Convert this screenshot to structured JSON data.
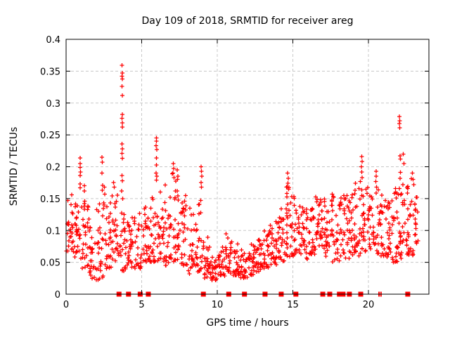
{
  "chart_data": {
    "type": "scatter",
    "title": "Day 109 of 2018, SRMTID for receiver areg",
    "xlabel": "GPS time / hours",
    "ylabel": "SRMTID / TECUs",
    "xlim": [
      0,
      24
    ],
    "ylim": [
      0,
      0.4
    ],
    "xticks": [
      0,
      5,
      10,
      15,
      20
    ],
    "xtick_labels": [
      "0",
      "5",
      "10",
      "15",
      "20"
    ],
    "yticks": [
      0,
      0.05,
      0.1,
      0.15,
      0.2,
      0.25,
      0.3,
      0.35,
      0.4
    ],
    "ytick_labels": [
      "0",
      "0.05",
      "0.1",
      "0.15",
      "0.2",
      "0.25",
      "0.3",
      "0.35",
      "0.4"
    ],
    "grid": true,
    "legend": "none",
    "marker": "plus",
    "colors": {
      "marker": "#ff0000",
      "grid": "#c8c8c8",
      "axis": "#000000",
      "background": "#ffffff",
      "text": "#000000"
    },
    "band_bins": [
      [
        0.0,
        0.5,
        0.065,
        0.16,
        26
      ],
      [
        0.5,
        1.0,
        0.055,
        0.15,
        26
      ],
      [
        1.0,
        1.5,
        0.04,
        0.155,
        28
      ],
      [
        1.5,
        2.0,
        0.02,
        0.125,
        26
      ],
      [
        2.0,
        2.5,
        0.02,
        0.145,
        28
      ],
      [
        2.5,
        3.0,
        0.04,
        0.15,
        26
      ],
      [
        3.0,
        3.5,
        0.05,
        0.16,
        26
      ],
      [
        3.5,
        4.0,
        0.035,
        0.13,
        24
      ],
      [
        4.0,
        4.5,
        0.035,
        0.125,
        26
      ],
      [
        4.5,
        5.0,
        0.04,
        0.13,
        24
      ],
      [
        5.0,
        5.5,
        0.05,
        0.145,
        26
      ],
      [
        5.5,
        6.0,
        0.05,
        0.165,
        26
      ],
      [
        6.0,
        6.5,
        0.05,
        0.165,
        28
      ],
      [
        6.5,
        7.0,
        0.045,
        0.175,
        28
      ],
      [
        7.0,
        7.5,
        0.05,
        0.19,
        30
      ],
      [
        7.5,
        8.0,
        0.045,
        0.155,
        26
      ],
      [
        8.0,
        8.5,
        0.03,
        0.14,
        24
      ],
      [
        8.5,
        9.0,
        0.035,
        0.155,
        26
      ],
      [
        9.0,
        9.5,
        0.025,
        0.09,
        24
      ],
      [
        9.5,
        10.0,
        0.022,
        0.065,
        26
      ],
      [
        10.0,
        10.5,
        0.028,
        0.075,
        24
      ],
      [
        10.5,
        11.0,
        0.03,
        0.095,
        24
      ],
      [
        11.0,
        11.5,
        0.028,
        0.08,
        24
      ],
      [
        11.5,
        12.0,
        0.025,
        0.07,
        24
      ],
      [
        12.0,
        12.5,
        0.03,
        0.08,
        26
      ],
      [
        12.5,
        13.0,
        0.035,
        0.09,
        26
      ],
      [
        13.0,
        13.5,
        0.04,
        0.1,
        26
      ],
      [
        13.5,
        14.0,
        0.045,
        0.115,
        28
      ],
      [
        14.0,
        14.5,
        0.05,
        0.135,
        28
      ],
      [
        14.5,
        15.0,
        0.055,
        0.175,
        30
      ],
      [
        15.0,
        15.5,
        0.06,
        0.155,
        28
      ],
      [
        15.5,
        16.0,
        0.055,
        0.14,
        26
      ],
      [
        16.0,
        16.5,
        0.06,
        0.15,
        28
      ],
      [
        16.5,
        17.0,
        0.065,
        0.165,
        30
      ],
      [
        17.0,
        17.5,
        0.055,
        0.15,
        28
      ],
      [
        17.5,
        18.0,
        0.05,
        0.16,
        28
      ],
      [
        18.0,
        18.5,
        0.05,
        0.155,
        26
      ],
      [
        18.5,
        19.0,
        0.055,
        0.165,
        28
      ],
      [
        19.0,
        19.5,
        0.06,
        0.185,
        28
      ],
      [
        19.5,
        20.0,
        0.065,
        0.175,
        28
      ],
      [
        20.0,
        20.5,
        0.07,
        0.16,
        26
      ],
      [
        20.5,
        21.0,
        0.06,
        0.165,
        28
      ],
      [
        21.0,
        21.5,
        0.055,
        0.15,
        26
      ],
      [
        21.5,
        22.0,
        0.05,
        0.17,
        28
      ],
      [
        22.0,
        22.5,
        0.055,
        0.195,
        30
      ],
      [
        22.5,
        23.0,
        0.06,
        0.185,
        30
      ],
      [
        23.0,
        23.3,
        0.08,
        0.16,
        16
      ]
    ],
    "peak_points": [
      [
        0.93,
        0.214
      ],
      [
        0.94,
        0.205
      ],
      [
        0.93,
        0.199
      ],
      [
        0.95,
        0.192
      ],
      [
        0.93,
        0.186
      ],
      [
        0.94,
        0.173
      ],
      [
        0.92,
        0.167
      ],
      [
        1.22,
        0.17
      ],
      [
        1.21,
        0.162
      ],
      [
        2.38,
        0.215
      ],
      [
        2.4,
        0.207
      ],
      [
        2.37,
        0.19
      ],
      [
        2.42,
        0.171
      ],
      [
        2.39,
        0.163
      ],
      [
        2.53,
        0.168
      ],
      [
        2.55,
        0.157
      ],
      [
        2.52,
        0.14
      ],
      [
        3.15,
        0.175
      ],
      [
        3.18,
        0.168
      ],
      [
        3.7,
        0.359
      ],
      [
        3.71,
        0.347
      ],
      [
        3.69,
        0.342
      ],
      [
        3.72,
        0.338
      ],
      [
        3.7,
        0.326
      ],
      [
        3.71,
        0.312
      ],
      [
        3.73,
        0.282
      ],
      [
        3.7,
        0.276
      ],
      [
        3.72,
        0.269
      ],
      [
        3.71,
        0.262
      ],
      [
        3.7,
        0.236
      ],
      [
        3.72,
        0.228
      ],
      [
        3.69,
        0.221
      ],
      [
        3.71,
        0.213
      ],
      [
        3.7,
        0.186
      ],
      [
        3.72,
        0.178
      ],
      [
        3.68,
        0.162
      ],
      [
        3.74,
        0.15
      ],
      [
        5.97,
        0.245
      ],
      [
        5.98,
        0.24
      ],
      [
        5.96,
        0.233
      ],
      [
        5.99,
        0.227
      ],
      [
        5.97,
        0.214
      ],
      [
        5.98,
        0.203
      ],
      [
        5.96,
        0.19
      ],
      [
        6.0,
        0.185
      ],
      [
        5.98,
        0.179
      ],
      [
        7.1,
        0.205
      ],
      [
        7.12,
        0.197
      ],
      [
        7.08,
        0.19
      ],
      [
        7.14,
        0.183
      ],
      [
        7.35,
        0.195
      ],
      [
        7.4,
        0.185
      ],
      [
        8.93,
        0.2
      ],
      [
        8.95,
        0.193
      ],
      [
        8.97,
        0.185
      ],
      [
        8.94,
        0.175
      ],
      [
        8.96,
        0.168
      ],
      [
        14.65,
        0.19
      ],
      [
        14.7,
        0.182
      ],
      [
        14.68,
        0.174
      ],
      [
        14.72,
        0.165
      ],
      [
        14.6,
        0.158
      ],
      [
        19.55,
        0.216
      ],
      [
        19.57,
        0.208
      ],
      [
        19.53,
        0.2
      ],
      [
        19.56,
        0.192
      ],
      [
        19.58,
        0.183
      ],
      [
        20.5,
        0.193
      ],
      [
        20.52,
        0.185
      ],
      [
        20.48,
        0.177
      ],
      [
        20.53,
        0.168
      ],
      [
        22.05,
        0.279
      ],
      [
        22.07,
        0.272
      ],
      [
        22.04,
        0.268
      ],
      [
        22.06,
        0.261
      ],
      [
        22.1,
        0.217
      ],
      [
        22.12,
        0.212
      ],
      [
        22.3,
        0.22
      ],
      [
        22.35,
        0.205
      ],
      [
        22.9,
        0.19
      ],
      [
        22.95,
        0.18
      ],
      [
        23.0,
        0.172
      ]
    ],
    "zero_marker_hours": [
      3.5,
      4.13,
      4.9,
      5.44,
      9.08,
      10.76,
      11.8,
      13.16,
      14.23,
      15.2,
      16.98,
      17.44,
      18.08,
      18.32,
      18.74,
      19.49,
      22.6
    ],
    "zero_tick_hours": [
      20.7,
      20.83
    ]
  }
}
